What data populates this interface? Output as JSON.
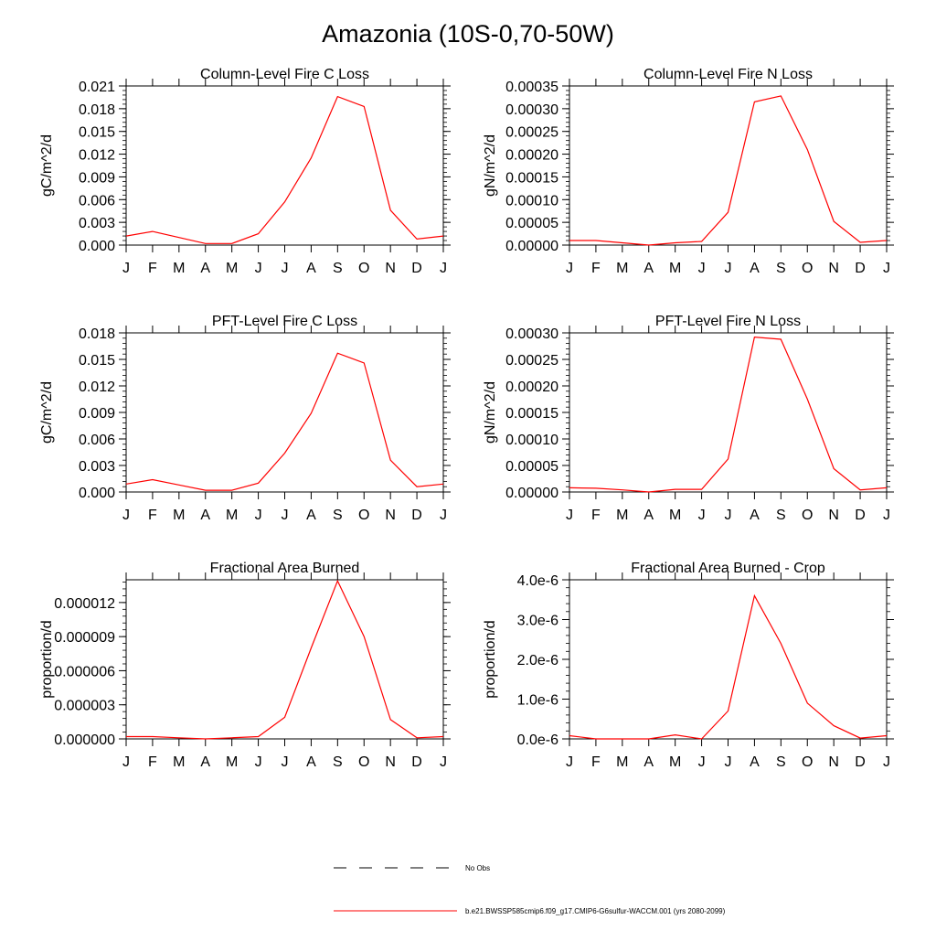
{
  "figure": {
    "title": "Amazonia (10S-0,70-50W)"
  },
  "months": [
    "J",
    "F",
    "M",
    "A",
    "M",
    "J",
    "J",
    "A",
    "S",
    "O",
    "N",
    "D",
    "J"
  ],
  "colors": {
    "model_line": "#ff0000",
    "obs_line": "#000000",
    "axis": "#000000"
  },
  "legend": {
    "placement": "bottom-center",
    "entries": [
      {
        "label": "No Obs",
        "style": "dashed",
        "color": "#000000"
      },
      {
        "label": "b.e21.BWSSP585cmip6.f09_g17.CMIP6-G6sulfur-WACCM.001 (yrs 2080-2099)",
        "style": "solid",
        "color": "#ff0000"
      }
    ]
  },
  "chart_data": [
    {
      "type": "line",
      "title": "Column-Level Fire C Loss",
      "ylabel": "gC/m^2/d",
      "xlabel": "",
      "ylim": [
        0,
        0.021
      ],
      "yticks": [
        0,
        0.003,
        0.006,
        0.009,
        0.012,
        0.015,
        0.018,
        0.021
      ],
      "ytick_labels": [
        "0.000",
        "0.003",
        "0.006",
        "0.009",
        "0.012",
        "0.015",
        "0.018",
        "0.021"
      ],
      "x": [
        "J",
        "F",
        "M",
        "A",
        "M",
        "J",
        "J",
        "A",
        "S",
        "O",
        "N",
        "D",
        "J"
      ],
      "series": [
        {
          "values": [
            0.0012,
            0.0018,
            0.001,
            0.0002,
            0.0002,
            0.0015,
            0.0057,
            0.0115,
            0.0196,
            0.0183,
            0.0046,
            0.0008,
            0.0012
          ]
        }
      ]
    },
    {
      "type": "line",
      "title": "Column-Level Fire N Loss",
      "ylabel": "gN/m^2/d",
      "xlabel": "",
      "ylim": [
        0,
        0.00035
      ],
      "yticks": [
        0,
        5e-05,
        0.0001,
        0.00015,
        0.0002,
        0.00025,
        0.0003,
        0.00035
      ],
      "ytick_labels": [
        "0.00000",
        "0.00005",
        "0.00010",
        "0.00015",
        "0.00020",
        "0.00025",
        "0.00030",
        "0.00035"
      ],
      "x": [
        "J",
        "F",
        "M",
        "A",
        "M",
        "J",
        "J",
        "A",
        "S",
        "O",
        "N",
        "D",
        "J"
      ],
      "series": [
        {
          "values": [
            1e-05,
            1e-05,
            5e-06,
            0.0,
            5e-06,
            8e-06,
            7.2e-05,
            0.000315,
            0.000328,
            0.00021,
            5.2e-05,
            6e-06,
            1e-05
          ]
        }
      ]
    },
    {
      "type": "line",
      "title": "PFT-Level Fire C Loss",
      "ylabel": "gC/m^2/d",
      "xlabel": "",
      "ylim": [
        0,
        0.018
      ],
      "yticks": [
        0,
        0.003,
        0.006,
        0.009,
        0.012,
        0.015,
        0.018
      ],
      "ytick_labels": [
        "0.000",
        "0.003",
        "0.006",
        "0.009",
        "0.012",
        "0.015",
        "0.018"
      ],
      "x": [
        "J",
        "F",
        "M",
        "A",
        "M",
        "J",
        "J",
        "A",
        "S",
        "O",
        "N",
        "D",
        "J"
      ],
      "series": [
        {
          "values": [
            0.0009,
            0.0014,
            0.0008,
            0.0002,
            0.0002,
            0.001,
            0.0044,
            0.0089,
            0.0157,
            0.0146,
            0.0036,
            0.0006,
            0.0009
          ]
        }
      ]
    },
    {
      "type": "line",
      "title": "PFT-Level Fire N Loss",
      "ylabel": "gN/m^2/d",
      "xlabel": "",
      "ylim": [
        0,
        0.0003
      ],
      "yticks": [
        0,
        5e-05,
        0.0001,
        0.00015,
        0.0002,
        0.00025,
        0.0003
      ],
      "ytick_labels": [
        "0.00000",
        "0.00005",
        "0.00010",
        "0.00015",
        "0.00020",
        "0.00025",
        "0.00030"
      ],
      "x": [
        "J",
        "F",
        "M",
        "A",
        "M",
        "J",
        "J",
        "A",
        "S",
        "O",
        "N",
        "D",
        "J"
      ],
      "series": [
        {
          "values": [
            8e-06,
            7e-06,
            4e-06,
            0.0,
            5e-06,
            5e-06,
            6.2e-05,
            0.000292,
            0.000288,
            0.000175,
            4.4e-05,
            4e-06,
            8e-06
          ]
        }
      ]
    },
    {
      "type": "line",
      "title": "Fractional Area Burned",
      "ylabel": "proportion/d",
      "xlabel": "",
      "ylim": [
        0,
        1.4e-05
      ],
      "yticks": [
        0,
        3e-06,
        6e-06,
        9e-06,
        1.2e-05
      ],
      "ytick_labels": [
        "0.000000",
        "0.000003",
        "0.000006",
        "0.000009",
        "0.000012"
      ],
      "x": [
        "J",
        "F",
        "M",
        "A",
        "M",
        "J",
        "J",
        "A",
        "S",
        "O",
        "N",
        "D",
        "J"
      ],
      "series": [
        {
          "values": [
            2e-07,
            2e-07,
            1e-07,
            0.0,
            1e-07,
            2e-07,
            1.9e-06,
            8e-06,
            1.39e-05,
            9e-06,
            1.7e-06,
            1e-07,
            2e-07
          ]
        }
      ]
    },
    {
      "type": "line",
      "title": "Fractional Area Burned - Crop",
      "ylabel": "proportion/d",
      "xlabel": "",
      "ylim": [
        0,
        4e-06
      ],
      "yticks": [
        0,
        1e-06,
        2e-06,
        3e-06,
        4e-06
      ],
      "ytick_labels": [
        "0.0e-6",
        "1.0e-6",
        "2.0e-6",
        "3.0e-6",
        "4.0e-6"
      ],
      "x": [
        "J",
        "F",
        "M",
        "A",
        "M",
        "J",
        "J",
        "A",
        "S",
        "O",
        "N",
        "D",
        "J"
      ],
      "series": [
        {
          "values": [
            8e-08,
            0.0,
            0.0,
            0.0,
            1e-07,
            0.0,
            7e-07,
            3.6e-06,
            2.4e-06,
            9e-07,
            3.3e-07,
            2e-08,
            8e-08
          ]
        }
      ]
    }
  ]
}
